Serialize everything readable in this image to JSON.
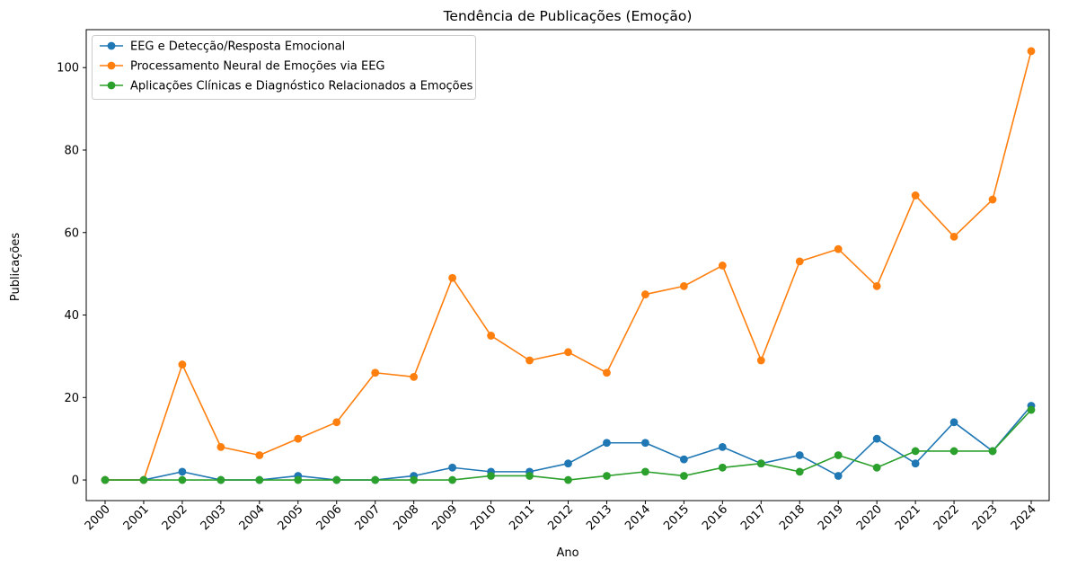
{
  "chart_data": {
    "type": "line",
    "title": "Tendência de Publicações (Emoção)",
    "xlabel": "Ano",
    "ylabel": "Publicações",
    "x": [
      "2000",
      "2001",
      "2002",
      "2003",
      "2004",
      "2005",
      "2006",
      "2007",
      "2008",
      "2009",
      "2010",
      "2011",
      "2012",
      "2013",
      "2014",
      "2015",
      "2016",
      "2017",
      "2018",
      "2019",
      "2020",
      "2021",
      "2022",
      "2023",
      "2024"
    ],
    "yticks": [
      0,
      20,
      40,
      60,
      80,
      100
    ],
    "ylim": [
      -5,
      109.2
    ],
    "grid": false,
    "legend_position": "upper-left",
    "series": [
      {
        "name": "EEG e Detecção/Resposta Emocional",
        "color": "#1f77b4",
        "values": [
          0,
          0,
          2,
          0,
          0,
          1,
          0,
          0,
          1,
          3,
          2,
          2,
          4,
          9,
          9,
          5,
          8,
          4,
          6,
          1,
          10,
          4,
          14,
          7,
          18
        ]
      },
      {
        "name": "Processamento Neural de Emoções via EEG",
        "color": "#ff7f0e",
        "values": [
          0,
          0,
          28,
          8,
          6,
          10,
          14,
          26,
          25,
          49,
          35,
          29,
          31,
          26,
          45,
          47,
          52,
          29,
          53,
          56,
          47,
          69,
          59,
          68,
          104
        ]
      },
      {
        "name": "Aplicações Clínicas e Diagnóstico Relacionados a Emoções",
        "color": "#2ca02c",
        "values": [
          0,
          0,
          0,
          0,
          0,
          0,
          0,
          0,
          0,
          0,
          1,
          1,
          0,
          1,
          2,
          1,
          3,
          4,
          2,
          6,
          3,
          7,
          7,
          7,
          17
        ]
      }
    ]
  }
}
